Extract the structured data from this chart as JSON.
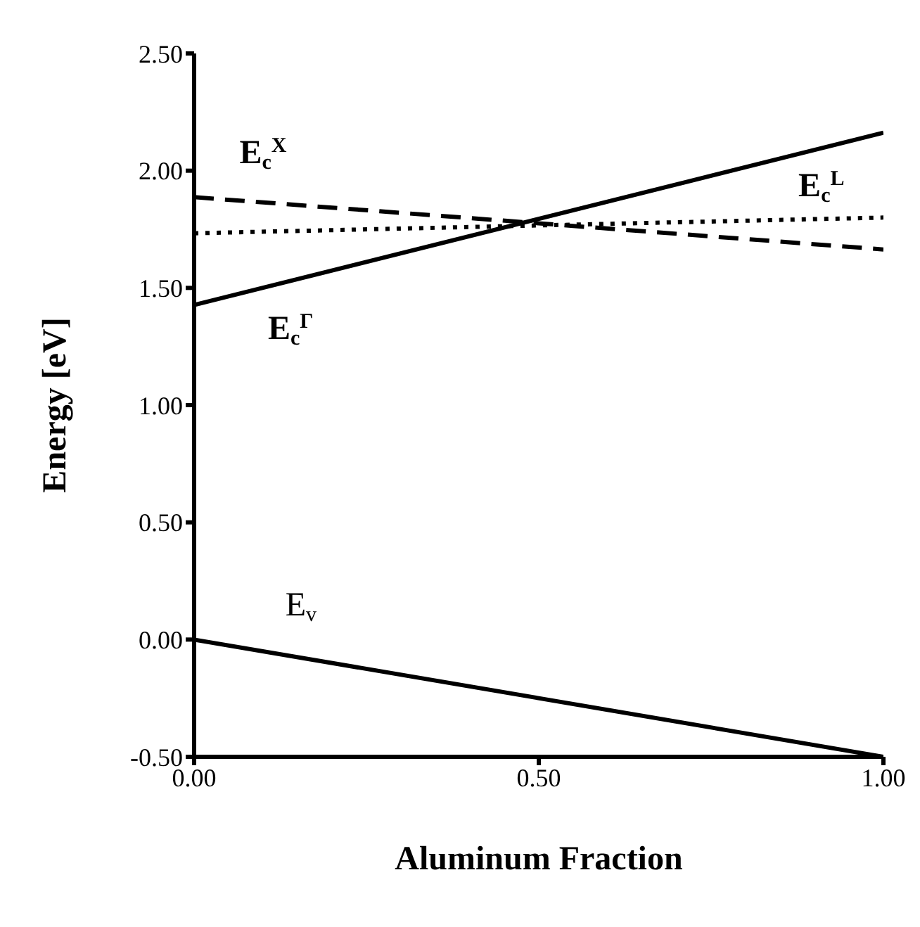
{
  "chart_data": {
    "type": "line",
    "xlabel": "Aluminum Fraction",
    "ylabel": "Energy [eV]",
    "x": [
      0,
      1
    ],
    "series": [
      {
        "name": "E$_{c}$$^{Γ}$",
        "color": "#000000",
        "line_style": "solid",
        "values": [
          1.427,
          2.162
        ]
      },
      {
        "name": "E$_{c}$$^{X}$",
        "color": "#000000",
        "line_style": "dashed",
        "values": [
          1.887,
          1.664
        ]
      },
      {
        "name": "E$_{c}$$^{L}$",
        "color": "#000000",
        "line_style": "dotted",
        "values": [
          1.733,
          1.8
        ]
      },
      {
        "name": "E$_{v}$",
        "color": "#000000",
        "line_style": "solid",
        "values": [
          0,
          -0.5
        ]
      }
    ],
    "xlim": [
      0,
      1
    ],
    "xticks": [
      {
        "value": 0,
        "label": "0.00"
      },
      {
        "value": 0.5,
        "label": "0.50"
      },
      {
        "value": 1,
        "label": "1.00"
      }
    ],
    "ylim": [
      -0.5,
      2.5
    ],
    "yticks": [
      {
        "value": -0.5,
        "label": "-0.50"
      },
      {
        "value": 0,
        "label": "0.00"
      },
      {
        "value": 0.5,
        "label": "0.50"
      },
      {
        "value": 1,
        "label": "1.00"
      },
      {
        "value": 1.5,
        "label": "1.50"
      },
      {
        "value": 2,
        "label": "2.00"
      },
      {
        "value": 2.5,
        "label": "2.50"
      }
    ],
    "grid": false,
    "legend": false,
    "marker": "none"
  }
}
